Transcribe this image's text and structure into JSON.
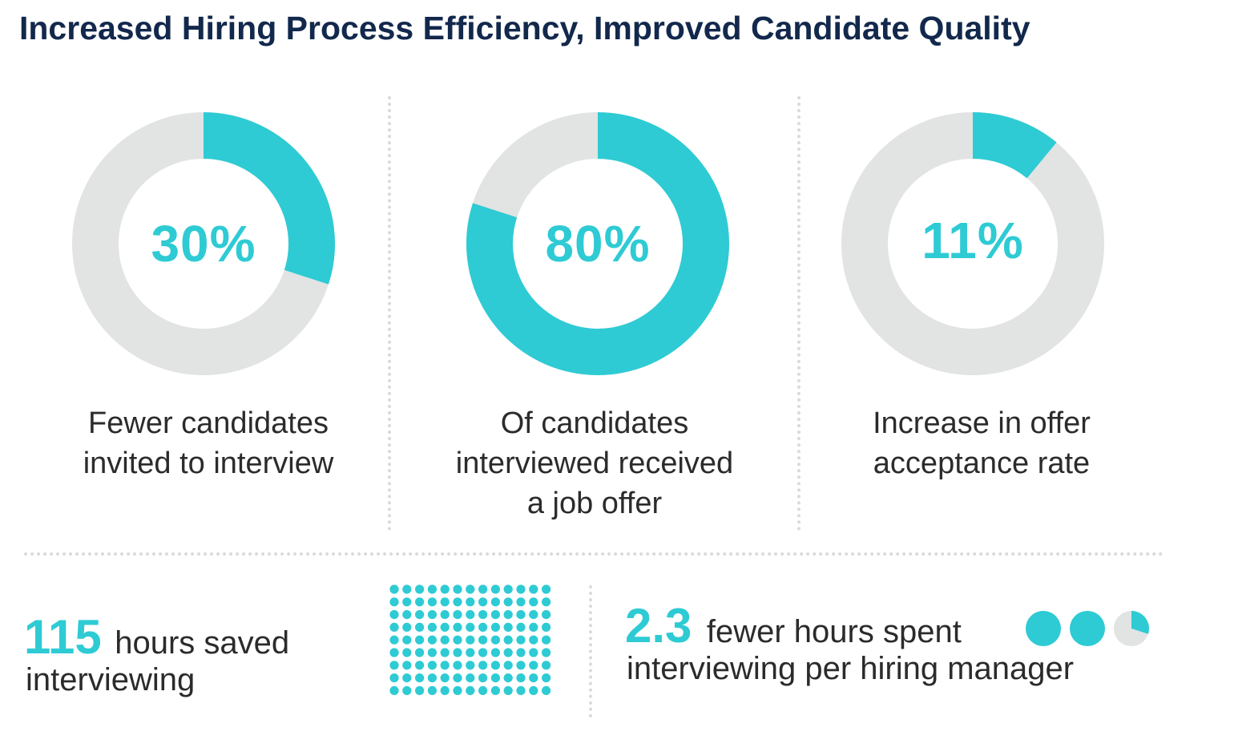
{
  "title": "Increased Hiring Process Efficiency, Improved Candidate Quality",
  "colors": {
    "accent": "#2ecbd4",
    "track": "#e2e3e3",
    "title": "#12284c",
    "text": "#2b2b2b"
  },
  "chart_data": [
    {
      "type": "pie",
      "variant": "donut",
      "value_label": "30%",
      "value": 30,
      "caption_lines": [
        "Fewer candidates",
        "invited to interview"
      ]
    },
    {
      "type": "pie",
      "variant": "donut",
      "value_label": "80%",
      "value": 80,
      "caption_lines": [
        "Of candidates",
        "interviewed received",
        "a job offer"
      ]
    },
    {
      "type": "pie",
      "variant": "donut",
      "value_label": "11%",
      "value": 11,
      "caption_lines": [
        "Increase in offer",
        "acceptance rate"
      ]
    }
  ],
  "stats": {
    "hours_saved": {
      "number": "115",
      "line1": "hours saved",
      "line2": "interviewing",
      "dot_icon_count": 115
    },
    "fewer_hours": {
      "number": "2.3",
      "line1": "fewer hours spent",
      "line2": "interviewing per hiring manager",
      "icon_fractions": [
        1,
        1,
        0.3
      ]
    }
  }
}
